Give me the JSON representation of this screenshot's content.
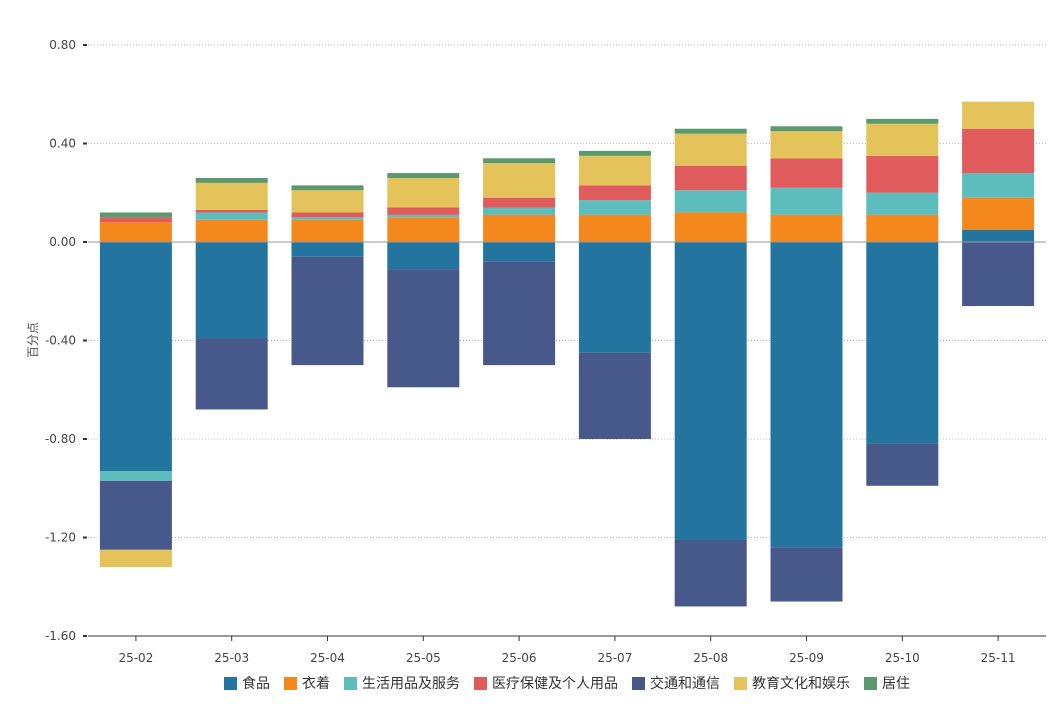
{
  "chart_data": {
    "type": "bar",
    "stacked": true,
    "ylabel": "百分点",
    "ylim": [
      -1.6,
      0.8
    ],
    "yticks": [
      0.8,
      0.4,
      0.0,
      -0.4,
      -0.8,
      -1.2,
      -1.6
    ],
    "ytick_labels": [
      "0.80",
      "0.40",
      "0.00",
      "-0.40",
      "-0.80",
      "-1.20",
      "-1.60"
    ],
    "grid": true,
    "legend_position": "bottom-center",
    "categories": [
      "25-02",
      "25-03",
      "25-04",
      "25-05",
      "25-06",
      "25-07",
      "25-08",
      "25-09",
      "25-10",
      "25-11"
    ],
    "series": [
      {
        "name": "食品",
        "color": "#2474a0",
        "values": [
          -0.93,
          -0.39,
          -0.06,
          -0.11,
          -0.08,
          -0.45,
          -1.21,
          -1.24,
          -0.82,
          0.05
        ]
      },
      {
        "name": "衣着",
        "color": "#f5881c",
        "values": [
          0.08,
          0.09,
          0.09,
          0.1,
          0.11,
          0.11,
          0.12,
          0.11,
          0.11,
          0.13
        ]
      },
      {
        "name": "生活用品及服务",
        "color": "#5dbdbc",
        "values": [
          -0.04,
          0.03,
          0.01,
          0.01,
          0.03,
          0.06,
          0.09,
          0.11,
          0.09,
          0.1
        ]
      },
      {
        "name": "医疗保健及个人用品",
        "color": "#e05b5c",
        "values": [
          0.02,
          0.01,
          0.02,
          0.03,
          0.04,
          0.06,
          0.1,
          0.12,
          0.15,
          0.18
        ]
      },
      {
        "name": "交通和通信",
        "color": "#47588b",
        "values": [
          -0.28,
          -0.29,
          -0.44,
          -0.48,
          -0.42,
          -0.35,
          -0.27,
          -0.22,
          -0.17,
          -0.26
        ]
      },
      {
        "name": "教育文化和娱乐",
        "color": "#e4c45a",
        "values": [
          -0.07,
          0.11,
          0.09,
          0.12,
          0.14,
          0.12,
          0.13,
          0.11,
          0.13,
          0.11
        ]
      },
      {
        "name": "居住",
        "color": "#5c9a6e",
        "values": [
          0.02,
          0.02,
          0.02,
          0.02,
          0.02,
          0.02,
          0.02,
          0.02,
          0.02,
          0.0
        ]
      }
    ]
  }
}
